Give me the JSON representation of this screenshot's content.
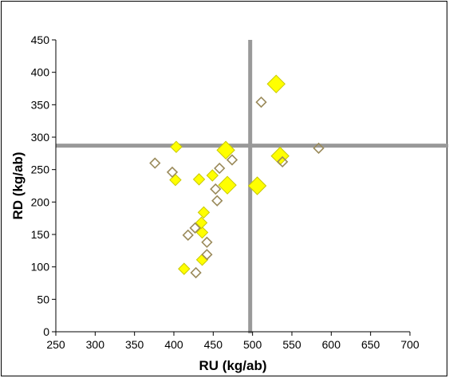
{
  "chart_data": {
    "type": "scatter",
    "title": "",
    "xlabel": "RU (kg/ab)",
    "ylabel": "RD (kg/ab)",
    "xlim": [
      250,
      700
    ],
    "ylim": [
      0,
      450
    ],
    "xticks": [
      250,
      300,
      350,
      400,
      450,
      500,
      550,
      600,
      650,
      700
    ],
    "yticks": [
      0,
      50,
      100,
      150,
      200,
      250,
      300,
      350,
      400,
      450
    ],
    "grid": false,
    "legend": "none",
    "reference_lines": {
      "x": 497,
      "y": 287,
      "color": "#999999"
    },
    "series": [
      {
        "marker": "filled-diamond",
        "color": "#ffff00",
        "edge_color": "#c8c800",
        "points": [
          {
            "x": 413,
            "y": 97,
            "size": "small"
          },
          {
            "x": 436,
            "y": 111,
            "size": "small"
          },
          {
            "x": 436,
            "y": 153,
            "size": "small"
          },
          {
            "x": 435,
            "y": 168,
            "size": "small"
          },
          {
            "x": 438,
            "y": 184,
            "size": "small"
          },
          {
            "x": 402,
            "y": 234,
            "size": "small"
          },
          {
            "x": 432,
            "y": 235,
            "size": "small"
          },
          {
            "x": 449,
            "y": 241,
            "size": "small"
          },
          {
            "x": 403,
            "y": 285,
            "size": "small"
          },
          {
            "x": 466,
            "y": 280,
            "size": "large"
          },
          {
            "x": 468,
            "y": 226,
            "size": "large"
          },
          {
            "x": 506,
            "y": 225,
            "size": "large"
          },
          {
            "x": 535,
            "y": 271,
            "size": "large"
          },
          {
            "x": 530,
            "y": 382,
            "size": "large"
          }
        ]
      },
      {
        "marker": "open-diamond",
        "color": "#9a8a5a",
        "points": [
          {
            "x": 428,
            "y": 91
          },
          {
            "x": 442,
            "y": 119
          },
          {
            "x": 442,
            "y": 138
          },
          {
            "x": 418,
            "y": 149
          },
          {
            "x": 427,
            "y": 160
          },
          {
            "x": 455,
            "y": 202
          },
          {
            "x": 453,
            "y": 220
          },
          {
            "x": 376,
            "y": 260
          },
          {
            "x": 398,
            "y": 246
          },
          {
            "x": 458,
            "y": 252
          },
          {
            "x": 474,
            "y": 265
          },
          {
            "x": 511,
            "y": 354
          },
          {
            "x": 538,
            "y": 262
          },
          {
            "x": 584,
            "y": 283
          }
        ]
      }
    ]
  }
}
